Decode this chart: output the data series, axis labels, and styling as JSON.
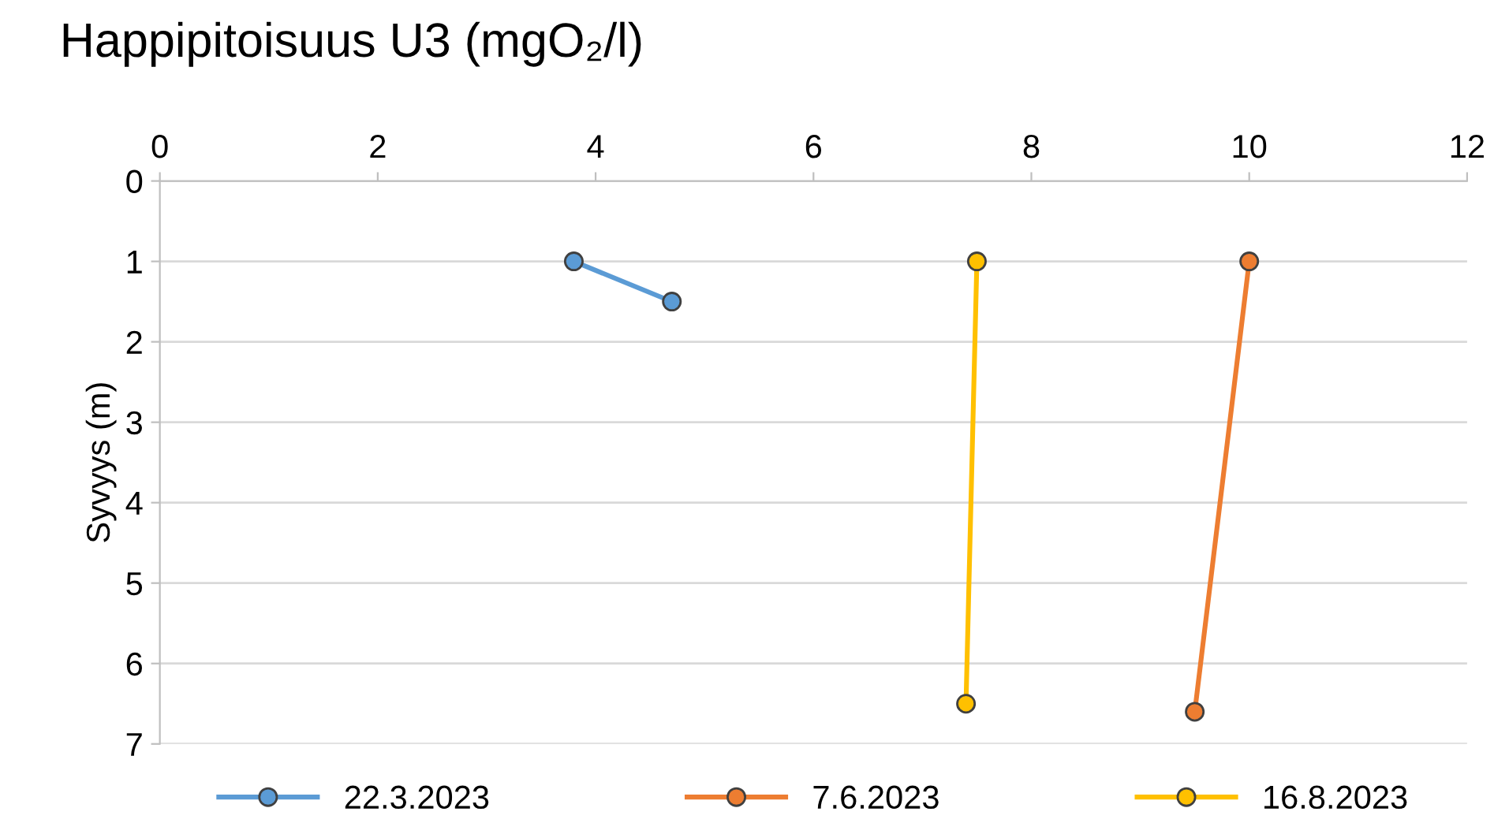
{
  "chart_data": {
    "type": "line",
    "title": "Happipitoisuus U3 (mgO₂/l)",
    "ylabel": "Syvyys (m)",
    "xlim": [
      0,
      12
    ],
    "xticks": [
      0,
      2,
      4,
      6,
      8,
      10,
      12
    ],
    "ylim": [
      7,
      0
    ],
    "yticks": [
      0,
      1,
      2,
      3,
      4,
      5,
      6,
      7
    ],
    "grid": "y",
    "legend": "bottom",
    "marker": "circle",
    "line_style": "solid",
    "series": [
      {
        "name": "22.3.2023",
        "color": "#5b9bd5",
        "x": [
          3.8,
          4.7
        ],
        "values": [
          1,
          1.5
        ]
      },
      {
        "name": "7.6.2023",
        "color": "#ed7d31",
        "x": [
          10.0,
          9.5
        ],
        "values": [
          1,
          6.6
        ]
      },
      {
        "name": "16.8.2023",
        "color": "#ffc000",
        "x": [
          7.5,
          7.4
        ],
        "values": [
          1,
          6.5
        ]
      }
    ]
  }
}
